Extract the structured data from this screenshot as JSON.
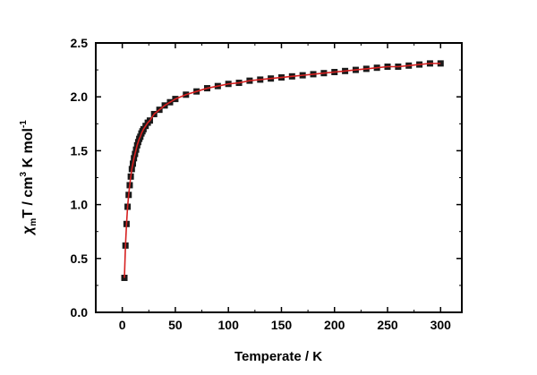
{
  "chart_data": {
    "type": "scatter",
    "xlabel": "Temperate / K",
    "ylabel": {
      "chi": "χ",
      "sub_m": "m",
      "t_units": "T / cm",
      "sup_3": "3",
      "k_mol": " K mol",
      "sup_neg1": "-1"
    },
    "xlim": [
      -25,
      320
    ],
    "ylim": [
      0,
      2.5
    ],
    "xticks": [
      0,
      50,
      100,
      150,
      200,
      250,
      300
    ],
    "yticks": [
      0.0,
      0.5,
      1.0,
      1.5,
      2.0,
      2.5
    ],
    "ytick_labels": [
      "0.0",
      "0.5",
      "1.0",
      "1.5",
      "2.0",
      "2.5"
    ],
    "grid": false,
    "series": [
      {
        "role": "experimental",
        "marker": "square",
        "color": "#1a1a1a",
        "x": [
          2,
          3,
          4,
          5,
          6,
          7,
          8,
          9,
          10,
          11,
          12,
          13,
          14,
          15,
          16,
          17,
          18,
          19,
          20,
          22,
          24,
          26,
          30,
          35,
          40,
          45,
          50,
          60,
          70,
          80,
          90,
          100,
          110,
          120,
          130,
          140,
          150,
          160,
          170,
          180,
          190,
          200,
          210,
          220,
          230,
          240,
          250,
          260,
          270,
          280,
          290,
          300
        ],
        "y": [
          0.32,
          0.62,
          0.82,
          0.98,
          1.09,
          1.18,
          1.26,
          1.33,
          1.38,
          1.43,
          1.47,
          1.51,
          1.55,
          1.58,
          1.61,
          1.63,
          1.66,
          1.68,
          1.7,
          1.73,
          1.76,
          1.78,
          1.84,
          1.88,
          1.92,
          1.95,
          1.98,
          2.02,
          2.05,
          2.08,
          2.1,
          2.12,
          2.13,
          2.15,
          2.16,
          2.17,
          2.18,
          2.19,
          2.2,
          2.21,
          2.22,
          2.23,
          2.24,
          2.25,
          2.26,
          2.27,
          2.28,
          2.28,
          2.29,
          2.3,
          2.31,
          2.31
        ]
      },
      {
        "role": "fit",
        "marker": "line",
        "color": "#d62020",
        "x": [
          2,
          3,
          4,
          5,
          6,
          7,
          8,
          9,
          10,
          11,
          12,
          13,
          14,
          15,
          16,
          17,
          18,
          19,
          20,
          22,
          24,
          26,
          30,
          35,
          40,
          45,
          50,
          60,
          70,
          80,
          90,
          100,
          110,
          120,
          130,
          140,
          150,
          160,
          170,
          180,
          190,
          200,
          210,
          220,
          230,
          240,
          250,
          260,
          270,
          280,
          290,
          300
        ],
        "y": [
          0.32,
          0.62,
          0.82,
          0.98,
          1.09,
          1.18,
          1.26,
          1.33,
          1.38,
          1.43,
          1.47,
          1.51,
          1.55,
          1.58,
          1.61,
          1.63,
          1.66,
          1.68,
          1.7,
          1.73,
          1.76,
          1.78,
          1.84,
          1.88,
          1.92,
          1.95,
          1.98,
          2.02,
          2.05,
          2.08,
          2.1,
          2.12,
          2.13,
          2.15,
          2.16,
          2.17,
          2.18,
          2.19,
          2.2,
          2.21,
          2.22,
          2.23,
          2.24,
          2.25,
          2.26,
          2.27,
          2.28,
          2.28,
          2.29,
          2.3,
          2.31,
          2.31
        ]
      }
    ]
  }
}
